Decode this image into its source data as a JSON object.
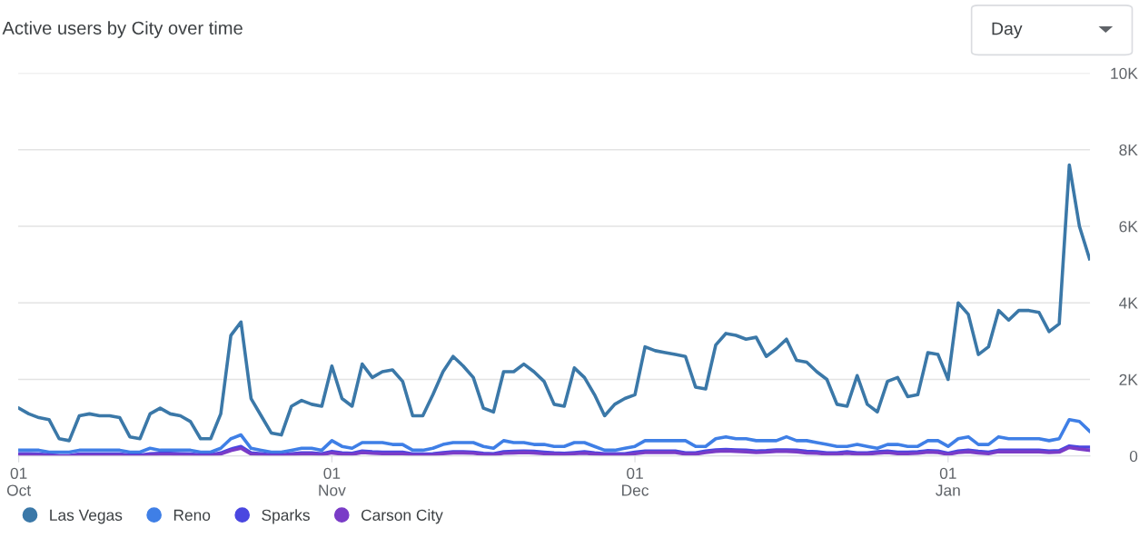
{
  "chart_data": {
    "type": "line",
    "title": "Active users by City over time",
    "annotations": [
      "Day"
    ],
    "categories": [
      "01\nOct",
      null,
      null,
      null,
      null,
      null,
      null,
      null,
      null,
      null,
      null,
      null,
      null,
      null,
      null,
      null,
      null,
      null,
      null,
      null,
      null,
      null,
      null,
      null,
      null,
      null,
      null,
      null,
      null,
      null,
      null,
      "01\nNov",
      null,
      null,
      null,
      null,
      null,
      null,
      null,
      null,
      null,
      null,
      null,
      null,
      null,
      null,
      null,
      null,
      null,
      null,
      null,
      null,
      null,
      null,
      null,
      null,
      null,
      null,
      null,
      null,
      null,
      "01\nDec",
      null,
      null,
      null,
      null,
      null,
      null,
      null,
      null,
      null,
      null,
      null,
      null,
      null,
      null,
      null,
      null,
      null,
      null,
      null,
      null,
      null,
      null,
      null,
      null,
      null,
      null,
      null,
      null,
      null,
      null,
      "01\nJan",
      null,
      null,
      null,
      null,
      null,
      null,
      null,
      null,
      null,
      null,
      null,
      null,
      null,
      null
    ],
    "ylim": [
      0,
      10000
    ],
    "yticks": [
      0,
      {
        "value": 2000,
        "label": "2K"
      },
      {
        "value": 4000,
        "label": "4K"
      },
      {
        "value": 6000,
        "label": "6K"
      },
      {
        "value": 8000,
        "label": "8K"
      },
      {
        "value": 10000,
        "label": "10K"
      }
    ],
    "grid": "y",
    "legend": "bottom left",
    "marker": "none",
    "line_style": "solid",
    "series": [
      {
        "name": "Las Vegas",
        "color": "#3b78a8",
        "values": [
          1250,
          1100,
          1000,
          950,
          450,
          400,
          1050,
          1100,
          1050,
          1050,
          1000,
          500,
          450,
          1100,
          1250,
          1100,
          1050,
          900,
          450,
          450,
          1100,
          3150,
          3500,
          1500,
          1050,
          600,
          550,
          1300,
          1450,
          1350,
          1300,
          2350,
          1500,
          1300,
          2400,
          2050,
          2200,
          2250,
          1950,
          1050,
          1050,
          1600,
          2200,
          2600,
          2350,
          2050,
          1250,
          1150,
          2200,
          2200,
          2400,
          2200,
          1950,
          1350,
          1300,
          2300,
          2050,
          1600,
          1050,
          1350,
          1500,
          1600,
          2850,
          2750,
          2700,
          2650,
          2600,
          1800,
          1750,
          2900,
          3200,
          3150,
          3050,
          3100,
          2600,
          2800,
          3050,
          2500,
          2450,
          2200,
          2000,
          1350,
          1300,
          2100,
          1350,
          1150,
          1950,
          2050,
          1550,
          1600,
          2700,
          2650,
          2000,
          4000,
          3700,
          2650,
          2850,
          3800,
          3550,
          3800,
          3800,
          3750,
          3250,
          3450,
          7600,
          6000,
          5150
        ]
      },
      {
        "name": "Reno",
        "color": "#3f7fe6",
        "values": [
          150,
          150,
          150,
          100,
          100,
          100,
          150,
          150,
          150,
          150,
          150,
          100,
          100,
          200,
          150,
          150,
          150,
          150,
          100,
          100,
          200,
          450,
          550,
          200,
          150,
          100,
          100,
          150,
          200,
          200,
          150,
          400,
          250,
          200,
          350,
          350,
          350,
          300,
          300,
          150,
          150,
          200,
          300,
          350,
          350,
          350,
          250,
          200,
          400,
          350,
          350,
          300,
          300,
          250,
          250,
          350,
          350,
          250,
          150,
          150,
          200,
          250,
          400,
          400,
          400,
          400,
          400,
          250,
          250,
          450,
          500,
          450,
          450,
          400,
          400,
          400,
          500,
          400,
          400,
          350,
          300,
          250,
          250,
          300,
          250,
          200,
          300,
          300,
          250,
          250,
          400,
          400,
          250,
          450,
          500,
          300,
          300,
          500,
          450,
          450,
          450,
          450,
          400,
          450,
          950,
          900,
          650
        ]
      },
      {
        "name": "Sparks",
        "color": "#4a47e0",
        "values": [
          60,
          60,
          50,
          30,
          10,
          10,
          50,
          50,
          50,
          50,
          50,
          20,
          20,
          60,
          70,
          70,
          60,
          50,
          30,
          30,
          80,
          180,
          250,
          80,
          60,
          30,
          30,
          60,
          80,
          80,
          60,
          120,
          80,
          70,
          130,
          110,
          100,
          100,
          100,
          50,
          50,
          60,
          90,
          110,
          110,
          100,
          70,
          60,
          110,
          120,
          130,
          120,
          100,
          80,
          70,
          90,
          110,
          80,
          60,
          60,
          60,
          100,
          130,
          130,
          130,
          130,
          80,
          80,
          130,
          160,
          170,
          160,
          150,
          130,
          140,
          160,
          160,
          150,
          120,
          110,
          80,
          80,
          110,
          80,
          80,
          110,
          130,
          100,
          100,
          110,
          140,
          130,
          70,
          130,
          150,
          120,
          100,
          150,
          150,
          150,
          150,
          150,
          130,
          140,
          260,
          230,
          230
        ]
      },
      {
        "name": "Carson City",
        "color": "#7a3cc7",
        "values": [
          30,
          30,
          20,
          10,
          0,
          0,
          20,
          20,
          20,
          20,
          20,
          0,
          0,
          30,
          40,
          40,
          30,
          20,
          10,
          10,
          50,
          140,
          200,
          50,
          30,
          10,
          10,
          30,
          50,
          50,
          30,
          80,
          50,
          40,
          90,
          70,
          60,
          60,
          60,
          20,
          20,
          30,
          60,
          80,
          80,
          70,
          40,
          30,
          70,
          80,
          90,
          80,
          60,
          50,
          40,
          60,
          70,
          50,
          30,
          30,
          30,
          60,
          90,
          90,
          90,
          90,
          50,
          50,
          90,
          120,
          130,
          120,
          110,
          90,
          100,
          120,
          120,
          110,
          80,
          70,
          50,
          50,
          70,
          50,
          50,
          70,
          90,
          60,
          60,
          70,
          100,
          90,
          40,
          90,
          110,
          80,
          60,
          110,
          110,
          110,
          110,
          110,
          90,
          100,
          220,
          180,
          150
        ]
      }
    ]
  }
}
